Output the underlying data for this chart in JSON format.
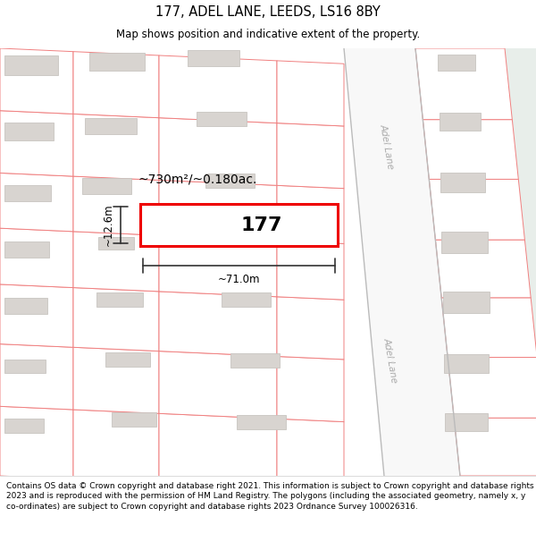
{
  "title": "177, ADEL LANE, LEEDS, LS16 8BY",
  "subtitle": "Map shows position and indicative extent of the property.",
  "footer": "Contains OS data © Crown copyright and database right 2021. This information is subject to Crown copyright and database rights 2023 and is reproduced with the permission of HM Land Registry. The polygons (including the associated geometry, namely x, y co-ordinates) are subject to Crown copyright and database rights 2023 Ordnance Survey 100026316.",
  "map_bg": "#ffffff",
  "road_bg": "#e8eeea",
  "parcel_edge": "#f08080",
  "parcel_fill": "#ffffff",
  "building_fill": "#d8d4d0",
  "building_edge": "#c8c4c0",
  "plot_color": "#ee0000",
  "measure_color": "#333333",
  "road_label_color": "#aaaaaa",
  "area_text": "~730m²/~0.180ac.",
  "number_text": "177",
  "width_label": "~71.0m",
  "height_label": "~12.6m",
  "road_label": "Adel Lane",
  "title_fontsize": 10.5,
  "subtitle_fontsize": 8.5,
  "footer_fontsize": 6.5
}
